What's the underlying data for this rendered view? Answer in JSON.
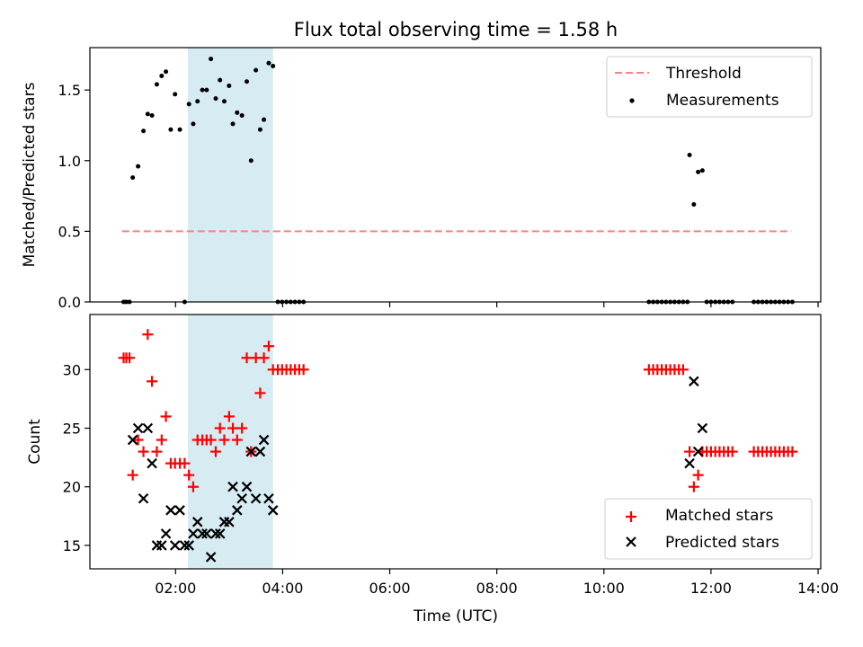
{
  "chart_data": [
    {
      "type": "scatter",
      "title": "Flux total observing time = 1.58 h",
      "xlabel": "",
      "ylabel": "Matched/Predicted stars",
      "xlim": [
        0.4,
        14.05
      ],
      "ylim": [
        0.0,
        1.8
      ],
      "y_ticks": [
        0.0,
        0.5,
        1.0,
        1.5
      ],
      "x_ticks": [
        2,
        4,
        6,
        8,
        10,
        12,
        14
      ],
      "x_tick_labels_visible": false,
      "shaded_span": [
        2.23,
        3.82
      ],
      "shaded_color": "#add8e6",
      "threshold": {
        "label": "Threshold",
        "value": 0.5,
        "x_range": [
          1.0,
          13.5
        ],
        "color": "#ff8080",
        "style": "dashed"
      },
      "legend": {
        "placement": "upper-right",
        "entries": [
          "Threshold",
          "Measurements"
        ]
      },
      "series": [
        {
          "name": "Measurements",
          "color": "#000000",
          "marker": "dot",
          "points": [
            [
              1.03,
              0
            ],
            [
              1.08,
              0
            ],
            [
              1.14,
              0
            ],
            [
              1.2,
              0.88
            ],
            [
              1.3,
              0.96
            ],
            [
              1.4,
              1.21
            ],
            [
              1.48,
              1.33
            ],
            [
              1.56,
              1.32
            ],
            [
              1.65,
              1.54
            ],
            [
              1.74,
              1.6
            ],
            [
              1.82,
              1.63
            ],
            [
              1.91,
              1.22
            ],
            [
              1.99,
              1.47
            ],
            [
              2.08,
              1.22
            ],
            [
              2.17,
              0
            ],
            [
              2.25,
              1.4
            ],
            [
              2.33,
              1.26
            ],
            [
              2.41,
              1.42
            ],
            [
              2.5,
              1.5
            ],
            [
              2.58,
              1.5
            ],
            [
              2.66,
              1.72
            ],
            [
              2.75,
              1.44
            ],
            [
              2.83,
              1.57
            ],
            [
              2.91,
              1.42
            ],
            [
              3.0,
              1.53
            ],
            [
              3.07,
              1.26
            ],
            [
              3.15,
              1.34
            ],
            [
              3.24,
              1.32
            ],
            [
              3.33,
              1.56
            ],
            [
              3.41,
              1.0
            ],
            [
              3.5,
              1.64
            ],
            [
              3.58,
              1.22
            ],
            [
              3.65,
              1.29
            ],
            [
              3.74,
              1.69
            ],
            [
              3.82,
              1.67
            ],
            [
              3.91,
              0
            ],
            [
              3.99,
              0
            ],
            [
              4.07,
              0
            ],
            [
              4.15,
              0
            ],
            [
              4.23,
              0
            ],
            [
              4.31,
              0
            ],
            [
              4.39,
              0
            ],
            [
              10.84,
              0
            ],
            [
              10.92,
              0
            ],
            [
              11.0,
              0
            ],
            [
              11.08,
              0
            ],
            [
              11.16,
              0
            ],
            [
              11.24,
              0
            ],
            [
              11.32,
              0
            ],
            [
              11.4,
              0
            ],
            [
              11.48,
              0
            ],
            [
              11.56,
              0
            ],
            [
              11.6,
              1.04
            ],
            [
              11.68,
              0.69
            ],
            [
              11.76,
              0.92
            ],
            [
              11.84,
              0.93
            ],
            [
              11.92,
              0
            ],
            [
              12.0,
              0
            ],
            [
              12.08,
              0
            ],
            [
              12.16,
              0
            ],
            [
              12.24,
              0
            ],
            [
              12.32,
              0
            ],
            [
              12.4,
              0
            ],
            [
              12.8,
              0
            ],
            [
              12.88,
              0
            ],
            [
              12.96,
              0
            ],
            [
              13.04,
              0
            ],
            [
              13.12,
              0
            ],
            [
              13.2,
              0
            ],
            [
              13.28,
              0
            ],
            [
              13.36,
              0
            ],
            [
              13.44,
              0
            ],
            [
              13.52,
              0
            ]
          ]
        }
      ]
    },
    {
      "type": "scatter",
      "title": "",
      "xlabel": "Time (UTC)",
      "ylabel": "Count",
      "xlim": [
        0.4,
        14.05
      ],
      "ylim": [
        13.0,
        34.7
      ],
      "y_ticks": [
        15,
        20,
        25,
        30
      ],
      "x_ticks": [
        2,
        4,
        6,
        8,
        10,
        12,
        14
      ],
      "x_tick_labels": [
        "02:00",
        "04:00",
        "06:00",
        "08:00",
        "10:00",
        "12:00",
        "14:00"
      ],
      "shaded_span": [
        2.23,
        3.82
      ],
      "shaded_color": "#add8e6",
      "legend": {
        "placement": "lower-right",
        "entries": [
          "Matched stars",
          "Predicted stars"
        ]
      },
      "series": [
        {
          "name": "Matched stars",
          "color": "#ff0000",
          "marker": "plus",
          "points": [
            [
              1.03,
              31
            ],
            [
              1.08,
              31
            ],
            [
              1.14,
              31
            ],
            [
              1.2,
              21
            ],
            [
              1.3,
              24
            ],
            [
              1.4,
              23
            ],
            [
              1.48,
              33
            ],
            [
              1.56,
              29
            ],
            [
              1.65,
              23
            ],
            [
              1.74,
              24
            ],
            [
              1.82,
              26
            ],
            [
              1.91,
              22
            ],
            [
              1.99,
              22
            ],
            [
              2.08,
              22
            ],
            [
              2.17,
              22
            ],
            [
              2.25,
              21
            ],
            [
              2.33,
              20
            ],
            [
              2.41,
              24
            ],
            [
              2.5,
              24
            ],
            [
              2.58,
              24
            ],
            [
              2.66,
              24
            ],
            [
              2.75,
              23
            ],
            [
              2.83,
              25
            ],
            [
              2.91,
              24
            ],
            [
              3.0,
              26
            ],
            [
              3.07,
              25
            ],
            [
              3.15,
              24
            ],
            [
              3.24,
              25
            ],
            [
              3.33,
              31
            ],
            [
              3.41,
              23
            ],
            [
              3.5,
              31
            ],
            [
              3.58,
              28
            ],
            [
              3.65,
              31
            ],
            [
              3.74,
              32
            ],
            [
              3.82,
              30
            ],
            [
              3.91,
              30
            ],
            [
              3.99,
              30
            ],
            [
              4.07,
              30
            ],
            [
              4.15,
              30
            ],
            [
              4.23,
              30
            ],
            [
              4.31,
              30
            ],
            [
              4.39,
              30
            ],
            [
              10.84,
              30
            ],
            [
              10.92,
              30
            ],
            [
              11.0,
              30
            ],
            [
              11.08,
              30
            ],
            [
              11.16,
              30
            ],
            [
              11.24,
              30
            ],
            [
              11.32,
              30
            ],
            [
              11.4,
              30
            ],
            [
              11.48,
              30
            ],
            [
              11.6,
              23
            ],
            [
              11.68,
              20
            ],
            [
              11.76,
              21
            ],
            [
              11.84,
              23
            ],
            [
              11.92,
              23
            ],
            [
              12.0,
              23
            ],
            [
              12.08,
              23
            ],
            [
              12.16,
              23
            ],
            [
              12.24,
              23
            ],
            [
              12.32,
              23
            ],
            [
              12.4,
              23
            ],
            [
              12.8,
              23
            ],
            [
              12.88,
              23
            ],
            [
              12.96,
              23
            ],
            [
              13.04,
              23
            ],
            [
              13.12,
              23
            ],
            [
              13.2,
              23
            ],
            [
              13.28,
              23
            ],
            [
              13.36,
              23
            ],
            [
              13.44,
              23
            ],
            [
              13.52,
              23
            ]
          ]
        },
        {
          "name": "Predicted stars",
          "color": "#000000",
          "marker": "x",
          "points": [
            [
              1.2,
              24
            ],
            [
              1.3,
              25
            ],
            [
              1.4,
              19
            ],
            [
              1.48,
              25
            ],
            [
              1.56,
              22
            ],
            [
              1.65,
              15
            ],
            [
              1.74,
              15
            ],
            [
              1.82,
              16
            ],
            [
              1.91,
              18
            ],
            [
              1.99,
              15
            ],
            [
              2.08,
              18
            ],
            [
              2.17,
              15
            ],
            [
              2.25,
              15
            ],
            [
              2.33,
              16
            ],
            [
              2.41,
              17
            ],
            [
              2.5,
              16
            ],
            [
              2.58,
              16
            ],
            [
              2.66,
              14
            ],
            [
              2.75,
              16
            ],
            [
              2.83,
              16
            ],
            [
              2.91,
              17
            ],
            [
              3.0,
              17
            ],
            [
              3.07,
              20
            ],
            [
              3.15,
              18
            ],
            [
              3.24,
              19
            ],
            [
              3.33,
              20
            ],
            [
              3.41,
              23
            ],
            [
              3.5,
              19
            ],
            [
              3.58,
              23
            ],
            [
              3.65,
              24
            ],
            [
              3.74,
              19
            ],
            [
              3.82,
              18
            ],
            [
              11.6,
              22
            ],
            [
              11.68,
              29
            ],
            [
              11.76,
              23
            ],
            [
              11.84,
              25
            ]
          ]
        }
      ]
    }
  ]
}
